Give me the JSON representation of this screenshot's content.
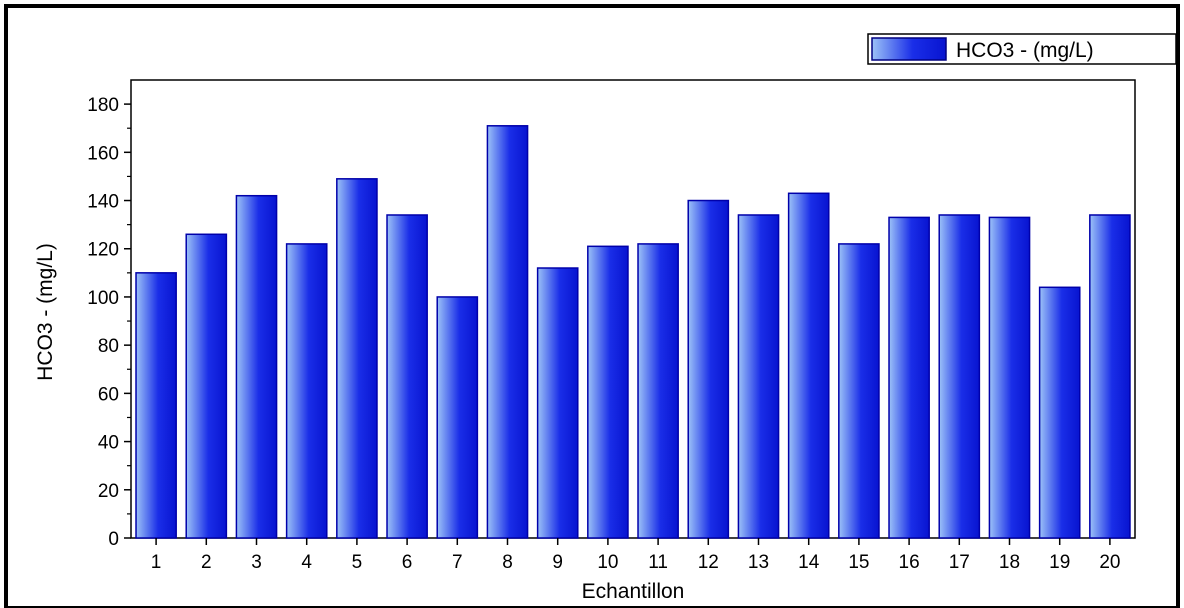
{
  "chart_data": {
    "type": "bar",
    "categories": [
      "1",
      "2",
      "3",
      "4",
      "5",
      "6",
      "7",
      "8",
      "9",
      "10",
      "11",
      "12",
      "13",
      "14",
      "15",
      "16",
      "17",
      "18",
      "19",
      "20"
    ],
    "series": [
      {
        "name": "HCO3 - (mg/L)",
        "values": [
          110,
          126,
          142,
          122,
          149,
          134,
          100,
          171,
          112,
          121,
          122,
          140,
          134,
          143,
          122,
          133,
          134,
          133,
          104,
          134
        ]
      }
    ],
    "xlabel": "Echantillon",
    "ylabel": "HCO3 - (mg/L)",
    "ylim": [
      0,
      190
    ],
    "yticks": [
      "0",
      "20",
      "40",
      "60",
      "80",
      "100",
      "120",
      "140",
      "160",
      "180"
    ],
    "grid": false,
    "legend": "top-right",
    "colors": {
      "bar_light": "#8fb8f5",
      "bar_dark": "#0a1ee0",
      "bar_edge": "#0000aa"
    }
  }
}
